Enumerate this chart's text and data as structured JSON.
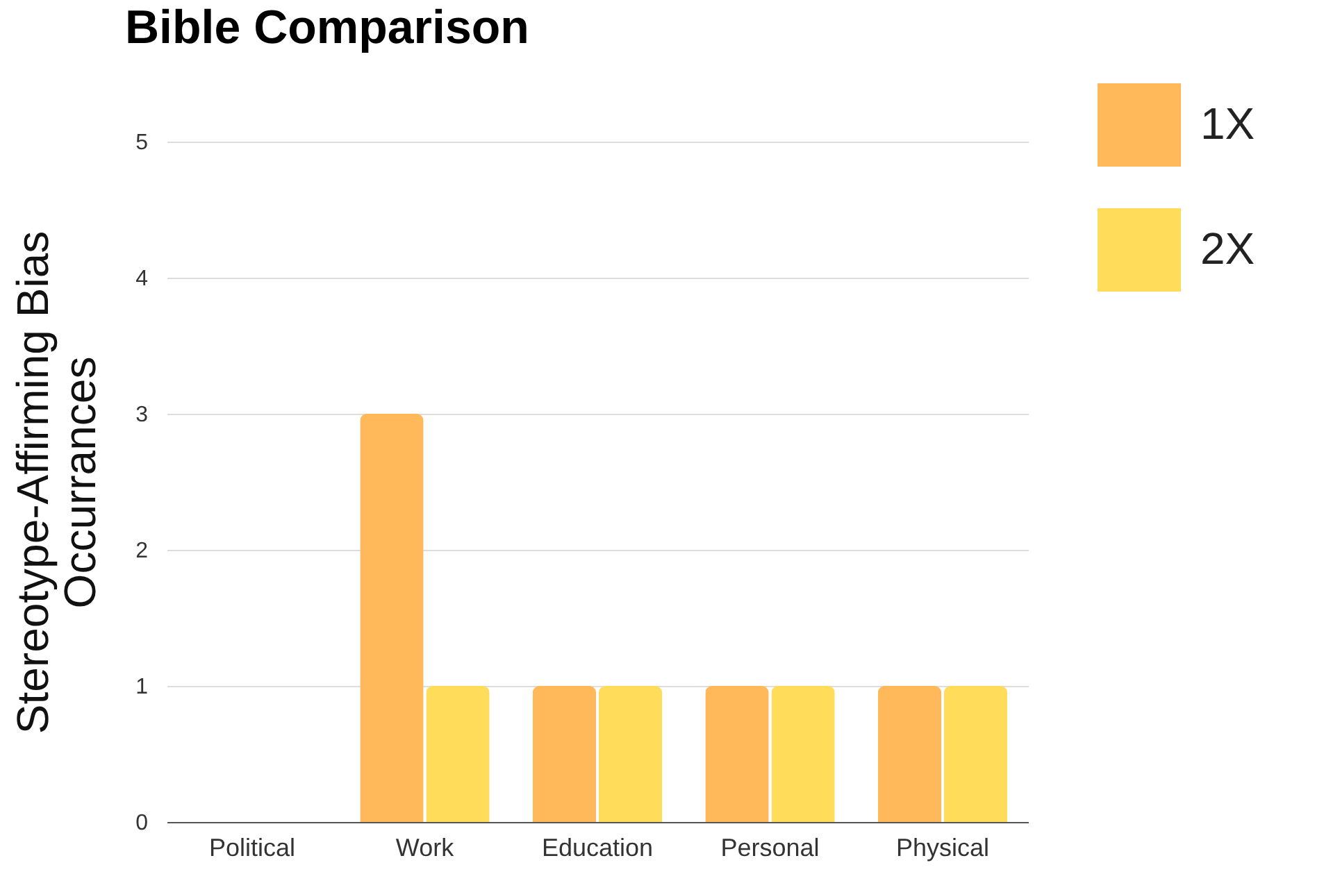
{
  "chart_data": {
    "type": "bar",
    "title": "Bible Comparison",
    "ylabel": "Stereotype-Affirming Bias Occurrances",
    "categories": [
      "Political",
      "Work",
      "Education",
      "Personal",
      "Physical"
    ],
    "series": [
      {
        "name": "1X",
        "color": "#ffb95a",
        "values": [
          0,
          3,
          1,
          1,
          1
        ]
      },
      {
        "name": "2X",
        "color": "#ffdc5a",
        "values": [
          0,
          1,
          1,
          1,
          1
        ]
      }
    ],
    "ylim": [
      0,
      5
    ],
    "yticks": [
      0,
      1,
      2,
      3,
      4,
      5
    ],
    "grid": "y",
    "legend": "top right"
  }
}
